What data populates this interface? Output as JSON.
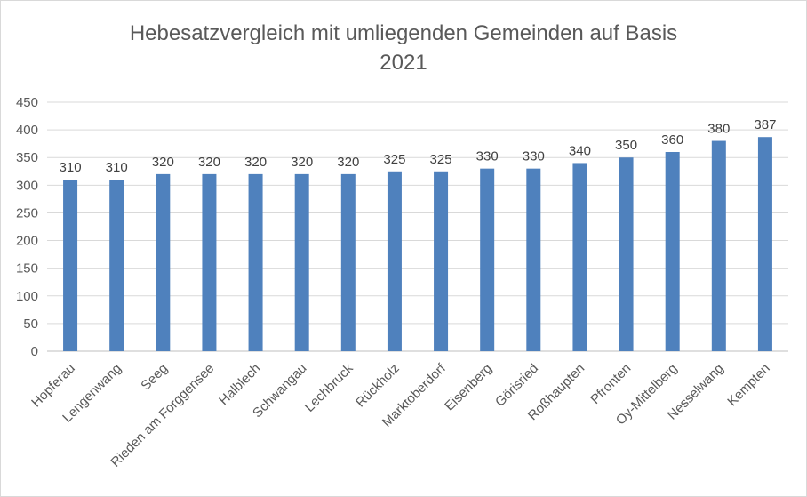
{
  "chart_data": {
    "type": "bar",
    "title_line1": "Hebesatzvergleich mit umliegenden Gemeinden auf Basis",
    "title_line2": "2021",
    "categories": [
      "Hopferau",
      "Lengenwang",
      "Seeg",
      "Rieden am Forggensee",
      "Halblech",
      "Schwangau",
      "Lechbruck",
      "Rückholz",
      "Marktoberdorf",
      "Eisenberg",
      "Görisried",
      "Roßhaupten",
      "Pfronten",
      "Oy-Mittelberg",
      "Nesselwang",
      "Kempten"
    ],
    "values": [
      310,
      310,
      320,
      320,
      320,
      320,
      320,
      325,
      325,
      330,
      330,
      340,
      350,
      360,
      380,
      387
    ],
    "ylim": [
      0,
      450
    ],
    "yticks": [
      0,
      50,
      100,
      150,
      200,
      250,
      300,
      350,
      400,
      450
    ],
    "grid": true,
    "bar_color": "#4f81bd"
  }
}
